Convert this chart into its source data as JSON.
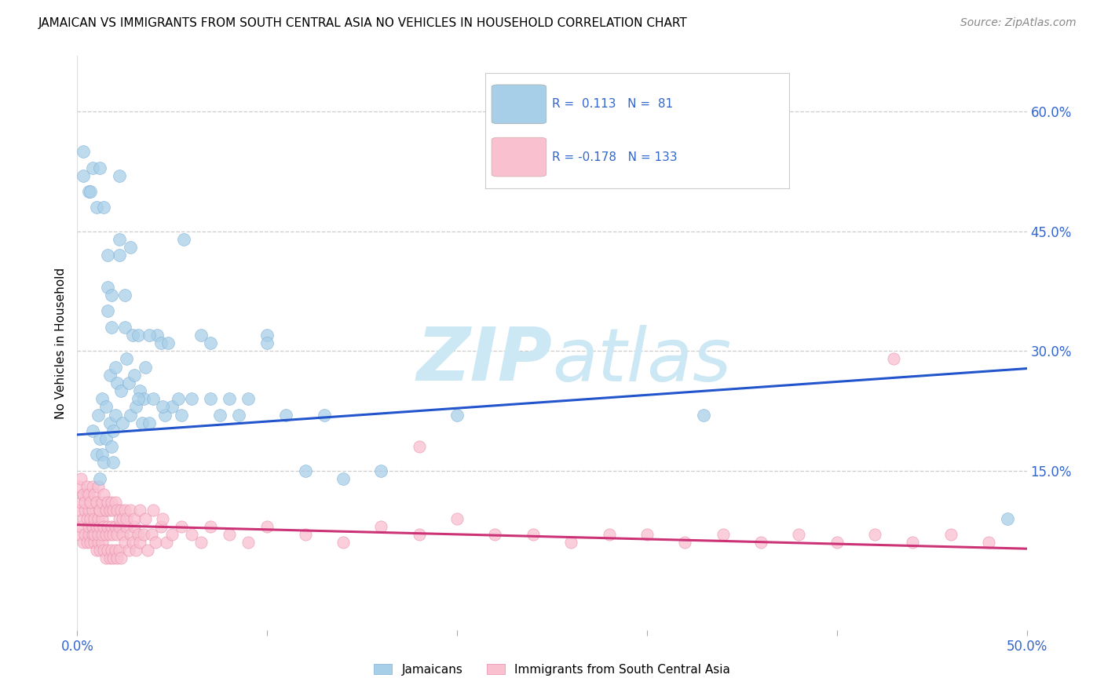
{
  "title": "JAMAICAN VS IMMIGRANTS FROM SOUTH CENTRAL ASIA NO VEHICLES IN HOUSEHOLD CORRELATION CHART",
  "source": "Source: ZipAtlas.com",
  "ylabel": "No Vehicles in Household",
  "ytick_labels": [
    "15.0%",
    "30.0%",
    "45.0%",
    "60.0%"
  ],
  "ytick_values": [
    0.15,
    0.3,
    0.45,
    0.6
  ],
  "xmin": 0.0,
  "xmax": 0.5,
  "ymin": -0.05,
  "ymax": 0.67,
  "blue_scatter_color": "#a8cfe8",
  "blue_scatter_edge": "#7baed6",
  "pink_scatter_color": "#f9c0d0",
  "pink_scatter_edge": "#e88aaa",
  "blue_line_color": "#2255cc",
  "pink_line_color": "#cc3377",
  "watermark_color": "#cde8f5",
  "blue_line_y0": 0.195,
  "blue_line_y1": 0.278,
  "pink_line_y0": 0.082,
  "pink_line_y1": 0.052,
  "jamaicans_x": [
    0.003,
    0.008,
    0.01,
    0.011,
    0.012,
    0.012,
    0.013,
    0.013,
    0.014,
    0.015,
    0.015,
    0.016,
    0.016,
    0.017,
    0.017,
    0.018,
    0.018,
    0.019,
    0.019,
    0.02,
    0.02,
    0.021,
    0.022,
    0.022,
    0.023,
    0.024,
    0.025,
    0.026,
    0.027,
    0.028,
    0.029,
    0.03,
    0.031,
    0.032,
    0.033,
    0.034,
    0.035,
    0.036,
    0.038,
    0.04,
    0.042,
    0.044,
    0.046,
    0.048,
    0.05,
    0.053,
    0.056,
    0.06,
    0.065,
    0.07,
    0.075,
    0.08,
    0.09,
    0.1,
    0.11,
    0.12,
    0.13,
    0.14,
    0.16,
    0.2,
    0.003,
    0.006,
    0.007,
    0.008,
    0.01,
    0.012,
    0.014,
    0.016,
    0.018,
    0.022,
    0.025,
    0.028,
    0.032,
    0.038,
    0.045,
    0.055,
    0.07,
    0.085,
    0.1,
    0.33,
    0.49
  ],
  "jamaicans_y": [
    0.55,
    0.2,
    0.17,
    0.22,
    0.14,
    0.19,
    0.17,
    0.24,
    0.16,
    0.19,
    0.23,
    0.38,
    0.35,
    0.27,
    0.21,
    0.18,
    0.33,
    0.2,
    0.16,
    0.28,
    0.22,
    0.26,
    0.42,
    0.44,
    0.25,
    0.21,
    0.33,
    0.29,
    0.26,
    0.22,
    0.32,
    0.27,
    0.23,
    0.32,
    0.25,
    0.21,
    0.24,
    0.28,
    0.21,
    0.24,
    0.32,
    0.31,
    0.22,
    0.31,
    0.23,
    0.24,
    0.44,
    0.24,
    0.32,
    0.24,
    0.22,
    0.24,
    0.24,
    0.32,
    0.22,
    0.15,
    0.22,
    0.14,
    0.15,
    0.22,
    0.52,
    0.5,
    0.5,
    0.53,
    0.48,
    0.53,
    0.48,
    0.42,
    0.37,
    0.52,
    0.37,
    0.43,
    0.24,
    0.32,
    0.23,
    0.22,
    0.31,
    0.22,
    0.31,
    0.22,
    0.09
  ],
  "asia_x": [
    0.001,
    0.001,
    0.002,
    0.002,
    0.003,
    0.003,
    0.003,
    0.004,
    0.004,
    0.005,
    0.005,
    0.005,
    0.006,
    0.006,
    0.006,
    0.007,
    0.007,
    0.007,
    0.008,
    0.008,
    0.008,
    0.009,
    0.009,
    0.009,
    0.01,
    0.01,
    0.01,
    0.011,
    0.011,
    0.011,
    0.012,
    0.012,
    0.012,
    0.013,
    0.013,
    0.013,
    0.014,
    0.014,
    0.015,
    0.015,
    0.015,
    0.016,
    0.016,
    0.017,
    0.017,
    0.018,
    0.018,
    0.019,
    0.019,
    0.02,
    0.02,
    0.021,
    0.021,
    0.022,
    0.022,
    0.023,
    0.024,
    0.025,
    0.026,
    0.027,
    0.028,
    0.029,
    0.03,
    0.031,
    0.032,
    0.033,
    0.035,
    0.037,
    0.039,
    0.041,
    0.044,
    0.047,
    0.05,
    0.055,
    0.06,
    0.065,
    0.07,
    0.08,
    0.09,
    0.1,
    0.12,
    0.14,
    0.16,
    0.18,
    0.2,
    0.22,
    0.24,
    0.26,
    0.28,
    0.3,
    0.32,
    0.34,
    0.36,
    0.38,
    0.4,
    0.42,
    0.44,
    0.46,
    0.48,
    0.001,
    0.002,
    0.003,
    0.004,
    0.005,
    0.006,
    0.007,
    0.008,
    0.009,
    0.01,
    0.011,
    0.012,
    0.013,
    0.014,
    0.015,
    0.016,
    0.017,
    0.018,
    0.019,
    0.02,
    0.021,
    0.022,
    0.023,
    0.024,
    0.025,
    0.026,
    0.028,
    0.03,
    0.033,
    0.036,
    0.04,
    0.045,
    0.18,
    0.43
  ],
  "asia_y": [
    0.07,
    0.1,
    0.08,
    0.11,
    0.06,
    0.09,
    0.12,
    0.07,
    0.1,
    0.06,
    0.09,
    0.12,
    0.07,
    0.1,
    0.08,
    0.06,
    0.09,
    0.11,
    0.07,
    0.1,
    0.08,
    0.06,
    0.09,
    0.07,
    0.05,
    0.08,
    0.11,
    0.06,
    0.09,
    0.07,
    0.05,
    0.08,
    0.1,
    0.06,
    0.09,
    0.07,
    0.05,
    0.08,
    0.04,
    0.07,
    0.1,
    0.05,
    0.08,
    0.04,
    0.07,
    0.05,
    0.08,
    0.04,
    0.07,
    0.05,
    0.08,
    0.04,
    0.07,
    0.05,
    0.08,
    0.04,
    0.07,
    0.06,
    0.08,
    0.05,
    0.07,
    0.06,
    0.08,
    0.05,
    0.07,
    0.06,
    0.07,
    0.05,
    0.07,
    0.06,
    0.08,
    0.06,
    0.07,
    0.08,
    0.07,
    0.06,
    0.08,
    0.07,
    0.06,
    0.08,
    0.07,
    0.06,
    0.08,
    0.07,
    0.09,
    0.07,
    0.07,
    0.06,
    0.07,
    0.07,
    0.06,
    0.07,
    0.06,
    0.07,
    0.06,
    0.07,
    0.06,
    0.07,
    0.06,
    0.13,
    0.14,
    0.12,
    0.11,
    0.13,
    0.12,
    0.11,
    0.13,
    0.12,
    0.11,
    0.13,
    0.1,
    0.11,
    0.12,
    0.1,
    0.11,
    0.1,
    0.11,
    0.1,
    0.11,
    0.1,
    0.09,
    0.1,
    0.09,
    0.1,
    0.09,
    0.1,
    0.09,
    0.1,
    0.09,
    0.1,
    0.09,
    0.18,
    0.29
  ]
}
